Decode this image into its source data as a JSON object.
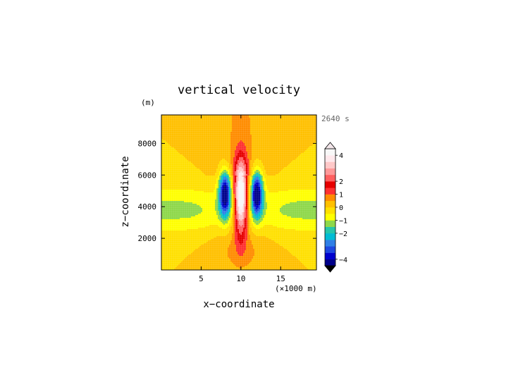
{
  "chart_data": {
    "type": "heatmap",
    "title": "vertical velocity",
    "xlabel": "x−coordinate",
    "ylabel": "z−coordinate",
    "x_unit": "(×1000 m)",
    "y_unit": "(m)",
    "time_label": "2640 s",
    "xlim": [
      0,
      19.5
    ],
    "ylim": [
      0,
      9800
    ],
    "x_ticks": [
      5,
      10,
      15
    ],
    "y_ticks": [
      2000,
      4000,
      6000,
      8000
    ],
    "colorbar": {
      "levels": [
        -4.5,
        -4,
        -3.5,
        -3,
        -2.5,
        -2,
        -1.5,
        -1,
        -0.5,
        0,
        0.5,
        1,
        1.5,
        2,
        2.5,
        3,
        3.5,
        4,
        4.5
      ],
      "colors": [
        "#00008b",
        "#0000cd",
        "#1e48e0",
        "#2f7fe6",
        "#00bcd4",
        "#26c6aa",
        "#8ed84a",
        "#ffff00",
        "#ffe000",
        "#ffc000",
        "#ff8c00",
        "#ff3030",
        "#e60000",
        "#ff6060",
        "#ff9999",
        "#ffc8c8",
        "#ffe8ec",
        "#f8f8f8"
      ],
      "tick_labels": [
        "4",
        "2",
        "1",
        "0",
        "−1",
        "−2",
        "−4"
      ],
      "tick_values": [
        4,
        2,
        1,
        0,
        -1,
        -2,
        -4
      ]
    },
    "field": {
      "updraft_peak": 5.0,
      "updraft_center": [
        10,
        4600
      ],
      "downdraft_min": -4.5,
      "downdraft_centers": [
        [
          8.0,
          4800
        ],
        [
          12.0,
          4800
        ]
      ],
      "grid": "on"
    }
  }
}
